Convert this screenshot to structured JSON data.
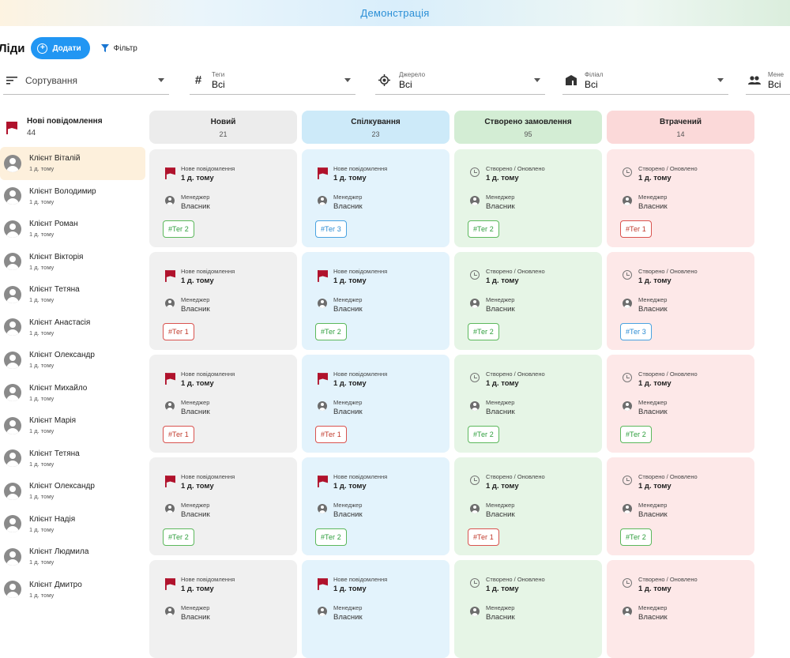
{
  "app": {
    "title": "Демонстрація"
  },
  "header": {
    "title": "Ліди",
    "add_label": "Додати",
    "filter_label": "Фільтр"
  },
  "filters": {
    "sort": {
      "placeholder": "Сортування"
    },
    "tags": {
      "label": "Теги",
      "value": "Всі"
    },
    "source": {
      "label": "Джерело",
      "value": "Всі"
    },
    "branch": {
      "label": "Філіал",
      "value": "Всі"
    },
    "manager": {
      "label": "Мене",
      "value": "Всі"
    }
  },
  "sidebar": {
    "header": {
      "title": "Нові повідомлення",
      "count": "44"
    },
    "items": [
      {
        "name": "Клієнт Віталій",
        "time": "1 д. тому"
      },
      {
        "name": "Клієнт Володимир",
        "time": "1 д. тому"
      },
      {
        "name": "Клієнт Роман",
        "time": "1 д. тому"
      },
      {
        "name": "Клієнт Вікторія",
        "time": "1 д. тому"
      },
      {
        "name": "Клієнт Тетяна",
        "time": "1 д. тому"
      },
      {
        "name": "Клієнт Анастасія",
        "time": "1 д. тому"
      },
      {
        "name": "Клієнт Олександр",
        "time": "1 д. тому"
      },
      {
        "name": "Клієнт Михайло",
        "time": "1 д. тому"
      },
      {
        "name": "Клієнт Марія",
        "time": "1 д. тому"
      },
      {
        "name": "Клієнт Тетяна",
        "time": "1 д. тому"
      },
      {
        "name": "Клієнт Олександр",
        "time": "1 д. тому"
      },
      {
        "name": "Клієнт Надія",
        "time": "1 д. тому"
      },
      {
        "name": "Клієнт Людмила",
        "time": "1 д. тому"
      },
      {
        "name": "Клієнт Дмитро",
        "time": "1 д. тому"
      }
    ]
  },
  "board": {
    "labels": {
      "new_message": "Нове повідомлення",
      "created_updated": "Створено / Оновлено",
      "time": "1 д. тому",
      "manager_label": "Менеджер",
      "manager_value": "Власник"
    },
    "columns": [
      {
        "title": "Новий",
        "count": "21",
        "color": "#f0f0f0",
        "event": "new_message",
        "tags": [
          {
            "text": "#Тег 2",
            "style": "green"
          },
          {
            "text": "#Тег 1",
            "style": "red"
          },
          {
            "text": "#Тег 1",
            "style": "red"
          },
          {
            "text": "#Тег 2",
            "style": "green"
          },
          null
        ]
      },
      {
        "title": "Спілкування",
        "count": "23",
        "color": "#e3f3fc",
        "header_color": "#cdeaf9",
        "event": "new_message",
        "tags": [
          {
            "text": "#Тег 3",
            "style": "blue"
          },
          {
            "text": "#Тег 2",
            "style": "green"
          },
          {
            "text": "#Тег 1",
            "style": "red"
          },
          {
            "text": "#Тег 2",
            "style": "green"
          },
          null
        ]
      },
      {
        "title": "Створено замовлення",
        "count": "95",
        "color": "#e6f5e6",
        "header_color": "#d3edd4",
        "event": "created_updated",
        "tags": [
          {
            "text": "#Тег 2",
            "style": "green"
          },
          {
            "text": "#Тег 2",
            "style": "green"
          },
          {
            "text": "#Тег 2",
            "style": "green"
          },
          {
            "text": "#Тег 1",
            "style": "red"
          },
          null
        ]
      },
      {
        "title": "Втрачений",
        "count": "14",
        "color": "#fde8e8",
        "header_color": "#fbd9d9",
        "event": "created_updated",
        "tags": [
          {
            "text": "#Тег 1",
            "style": "red"
          },
          {
            "text": "#Тег 3",
            "style": "blue"
          },
          {
            "text": "#Тег 2",
            "style": "green"
          },
          {
            "text": "#Тег 2",
            "style": "green"
          },
          null
        ]
      }
    ]
  },
  "colors": {
    "accent": "#2196f3",
    "flag": "#b0122c",
    "active_item": "#fdf0dc"
  },
  "icons": {
    "sort": "sort-icon",
    "tags": "hash-icon",
    "source": "target-icon",
    "branch": "building-icon",
    "manager": "people-icon",
    "flag": "flag-icon",
    "clock": "clock-icon",
    "user": "user-icon"
  }
}
